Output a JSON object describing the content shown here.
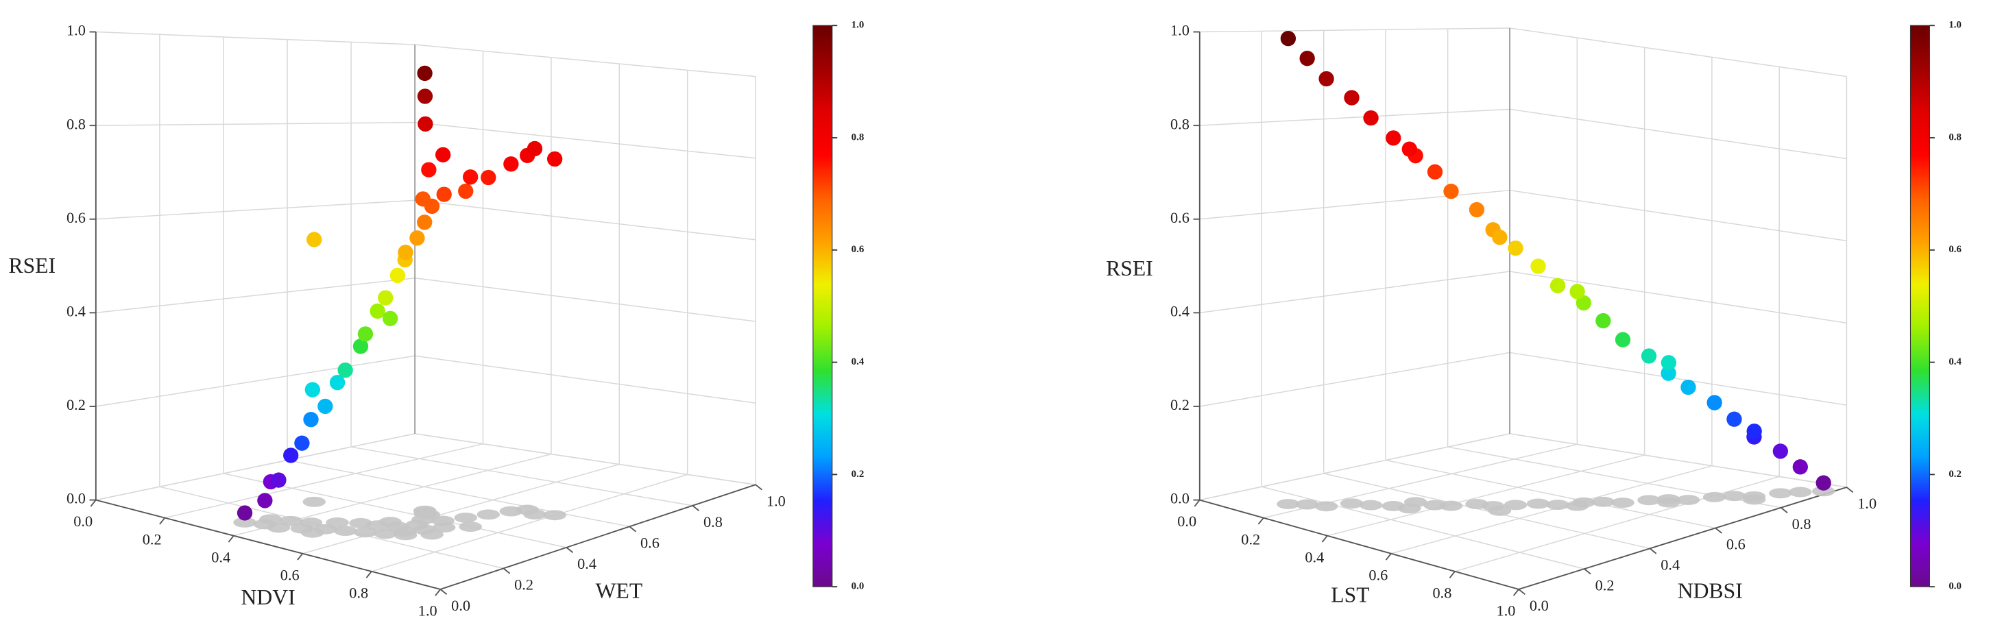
{
  "chart_data": [
    {
      "type": "scatter3d",
      "xlabel": "NDVI",
      "ylabel": "WET",
      "zlabel": "RSEI",
      "xlim": [
        0,
        1
      ],
      "ylim": [
        0,
        1
      ],
      "zlim": [
        0,
        1
      ],
      "xticks": [
        {
          "value": 0,
          "label": "0.0"
        },
        0.2,
        0.4,
        0.6,
        0.8,
        {
          "value": 1,
          "label": "1.0"
        }
      ],
      "yticks": [
        {
          "value": 0,
          "label": "0.0"
        },
        0.2,
        0.4,
        0.6,
        0.8,
        {
          "value": 1,
          "label": "1.0"
        }
      ],
      "zticks": [
        {
          "value": 0,
          "label": "0.0"
        },
        0.2,
        0.4,
        0.6,
        0.8,
        {
          "value": 1,
          "label": "1.0"
        }
      ],
      "colorbar_ticks": [
        {
          "value": 0,
          "label": "0.0"
        },
        0.2,
        0.4,
        0.6,
        0.8,
        {
          "value": 1,
          "label": "1.0"
        }
      ],
      "colormap": [
        "#6a0a8c",
        "#7a00d0",
        "#2020ff",
        "#00a0ff",
        "#00e0e0",
        "#30e030",
        "#a0f000",
        "#f0f000",
        "#ffa000",
        "#ff6000",
        "#ff0000",
        "#e00000",
        "#a00000",
        "#6a0000"
      ],
      "shadow_color": "#c4c4c4",
      "x": [
        0.34,
        0.38,
        0.36,
        0.42,
        0.4,
        0.46,
        0.44,
        0.5,
        0.48,
        0.54,
        0.52,
        0.58,
        0.56,
        0.62,
        0.6,
        0.64,
        0.62,
        0.66,
        0.6,
        0.68,
        0.58,
        0.64,
        0.57,
        0.56,
        0.55,
        0.66,
        0.68,
        0.7,
        0.72,
        0.32,
        0.5,
        0.56,
        0.66,
        0.7,
        0.72,
        0.76,
        0.8
      ],
      "y": [
        0.1,
        0.12,
        0.16,
        0.12,
        0.18,
        0.15,
        0.2,
        0.18,
        0.24,
        0.2,
        0.27,
        0.22,
        0.28,
        0.24,
        0.3,
        0.28,
        0.34,
        0.32,
        0.38,
        0.36,
        0.42,
        0.4,
        0.42,
        0.43,
        0.44,
        0.45,
        0.5,
        0.55,
        0.58,
        0.34,
        0.14,
        0.32,
        0.26,
        0.3,
        0.4,
        0.56,
        0.58
      ],
      "z": [
        0.02,
        0.05,
        0.08,
        0.1,
        0.14,
        0.18,
        0.22,
        0.26,
        0.3,
        0.34,
        0.38,
        0.42,
        0.46,
        0.5,
        0.54,
        0.58,
        0.62,
        0.66,
        0.7,
        0.72,
        0.76,
        0.8,
        0.86,
        0.92,
        0.97,
        0.72,
        0.75,
        0.78,
        0.8,
        0.58,
        0.3,
        0.44,
        0.6,
        0.7,
        0.76,
        0.82,
        0.8
      ]
    },
    {
      "type": "scatter3d",
      "xlabel": "LST",
      "ylabel": "NDBSI",
      "zlabel": "RSEI",
      "xlim": [
        0,
        1
      ],
      "ylim": [
        0,
        1
      ],
      "zlim": [
        0,
        1
      ],
      "xticks": [
        {
          "value": 0,
          "label": "0.0"
        },
        0.2,
        0.4,
        0.6,
        0.8,
        {
          "value": 1,
          "label": "1.0"
        }
      ],
      "yticks": [
        {
          "value": 0,
          "label": "0.0"
        },
        0.2,
        0.4,
        0.6,
        0.8,
        {
          "value": 1,
          "label": "1.0"
        }
      ],
      "zticks": [
        {
          "value": 0,
          "label": "0.0"
        },
        0.2,
        0.4,
        0.6,
        0.8,
        {
          "value": 1,
          "label": "1.0"
        }
      ],
      "colorbar_ticks": [
        {
          "value": 0,
          "label": "0.0"
        },
        0.2,
        0.4,
        0.6,
        0.8,
        {
          "value": 1,
          "label": "1.0"
        }
      ],
      "colormap": [
        "#6a0a8c",
        "#7a00d0",
        "#2020ff",
        "#00a0ff",
        "#00e0e0",
        "#30e030",
        "#a0f000",
        "#f0f000",
        "#ffa000",
        "#ff6000",
        "#ff0000",
        "#e00000",
        "#a00000",
        "#6a0000"
      ],
      "shadow_color": "#c4c4c4",
      "x": [
        0.15,
        0.18,
        0.22,
        0.24,
        0.28,
        0.32,
        0.33,
        0.38,
        0.41,
        0.44,
        0.48,
        0.51,
        0.54,
        0.58,
        0.61,
        0.64,
        0.68,
        0.71,
        0.74,
        0.78,
        0.81,
        0.84,
        0.88,
        0.91,
        0.94,
        0.98,
        0.36,
        0.52,
        0.62,
        0.76,
        0.9
      ],
      "y": [
        0.13,
        0.16,
        0.18,
        0.24,
        0.26,
        0.29,
        0.35,
        0.36,
        0.38,
        0.43,
        0.44,
        0.48,
        0.52,
        0.54,
        0.59,
        0.62,
        0.64,
        0.69,
        0.72,
        0.74,
        0.79,
        0.82,
        0.84,
        0.89,
        0.92,
        0.95,
        0.3,
        0.42,
        0.56,
        0.7,
        0.82
      ],
      "z": [
        1.0,
        0.96,
        0.92,
        0.88,
        0.84,
        0.8,
        0.76,
        0.73,
        0.69,
        0.65,
        0.61,
        0.57,
        0.53,
        0.49,
        0.45,
        0.41,
        0.37,
        0.33,
        0.29,
        0.26,
        0.22,
        0.18,
        0.14,
        0.1,
        0.06,
        0.02,
        0.78,
        0.6,
        0.48,
        0.32,
        0.16
      ]
    }
  ]
}
